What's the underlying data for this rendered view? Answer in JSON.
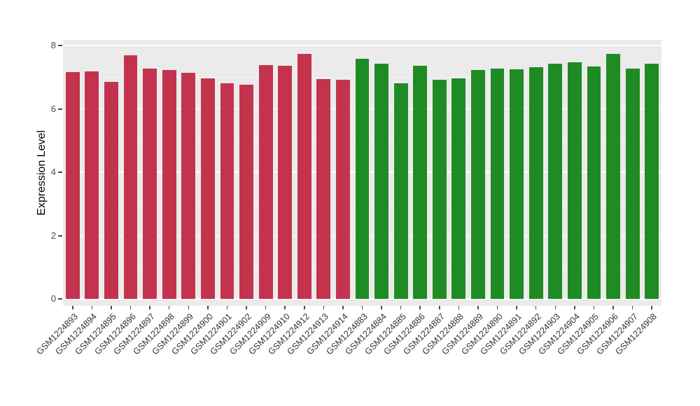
{
  "chart_data": {
    "type": "bar",
    "title": "",
    "xlabel": "",
    "ylabel": "Expression Level",
    "ylim": [
      0,
      8
    ],
    "yticks": [
      0,
      2,
      4,
      6,
      8
    ],
    "yticks_minor": [
      1,
      3,
      5,
      7
    ],
    "grid": true,
    "legend_position": "none",
    "panel_bg": "#EBEBEB",
    "gridline_color": "#FFFFFF",
    "bar_colors": {
      "groupA": "#C4334E",
      "groupB": "#1F8B24"
    },
    "bars": [
      {
        "label": "GSM1224893",
        "value": 7.17,
        "group": "groupA"
      },
      {
        "label": "GSM1224894",
        "value": 7.18,
        "group": "groupA"
      },
      {
        "label": "GSM1224895",
        "value": 6.85,
        "group": "groupA"
      },
      {
        "label": "GSM1224896",
        "value": 7.68,
        "group": "groupA"
      },
      {
        "label": "GSM1224897",
        "value": 7.27,
        "group": "groupA"
      },
      {
        "label": "GSM1224898",
        "value": 7.22,
        "group": "groupA"
      },
      {
        "label": "GSM1224899",
        "value": 7.13,
        "group": "groupA"
      },
      {
        "label": "GSM1224900",
        "value": 6.97,
        "group": "groupA"
      },
      {
        "label": "GSM1224901",
        "value": 6.81,
        "group": "groupA"
      },
      {
        "label": "GSM1224902",
        "value": 6.77,
        "group": "groupA"
      },
      {
        "label": "GSM1224909",
        "value": 7.39,
        "group": "groupA"
      },
      {
        "label": "GSM1224910",
        "value": 7.37,
        "group": "groupA"
      },
      {
        "label": "GSM1224912",
        "value": 7.74,
        "group": "groupA"
      },
      {
        "label": "GSM1224913",
        "value": 6.94,
        "group": "groupA"
      },
      {
        "label": "GSM1224914",
        "value": 6.91,
        "group": "groupA"
      },
      {
        "label": "GSM1224883",
        "value": 7.59,
        "group": "groupB"
      },
      {
        "label": "GSM1224884",
        "value": 7.42,
        "group": "groupB"
      },
      {
        "label": "GSM1224885",
        "value": 6.81,
        "group": "groupB"
      },
      {
        "label": "GSM1224886",
        "value": 7.37,
        "group": "groupB"
      },
      {
        "label": "GSM1224887",
        "value": 6.92,
        "group": "groupB"
      },
      {
        "label": "GSM1224888",
        "value": 6.96,
        "group": "groupB"
      },
      {
        "label": "GSM1224889",
        "value": 7.22,
        "group": "groupB"
      },
      {
        "label": "GSM1224890",
        "value": 7.27,
        "group": "groupB"
      },
      {
        "label": "GSM1224891",
        "value": 7.24,
        "group": "groupB"
      },
      {
        "label": "GSM1224892",
        "value": 7.32,
        "group": "groupB"
      },
      {
        "label": "GSM1224903",
        "value": 7.43,
        "group": "groupB"
      },
      {
        "label": "GSM1224904",
        "value": 7.48,
        "group": "groupB"
      },
      {
        "label": "GSM1224905",
        "value": 7.33,
        "group": "groupB"
      },
      {
        "label": "GSM1224906",
        "value": 7.73,
        "group": "groupB"
      },
      {
        "label": "GSM1224907",
        "value": 7.28,
        "group": "groupB"
      },
      {
        "label": "GSM1224908",
        "value": 7.43,
        "group": "groupB"
      }
    ]
  }
}
